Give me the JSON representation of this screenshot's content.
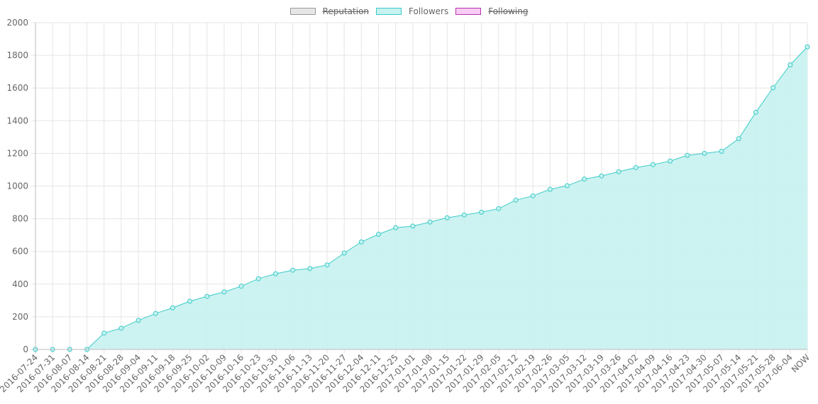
{
  "legend": [
    {
      "label": "Reputation",
      "fill": "#e6e6e6",
      "stroke": "#999999",
      "hidden": true
    },
    {
      "label": "Followers",
      "fill": "#c6f2f0",
      "stroke": "#3dcbc8",
      "hidden": false
    },
    {
      "label": "Following",
      "fill": "#f8ccf4",
      "stroke": "#b833ae",
      "hidden": true
    }
  ],
  "chart_data": {
    "type": "area",
    "title": "",
    "xlabel": "",
    "ylabel": "",
    "ylim": [
      0,
      2000
    ],
    "yticks": [
      "0",
      "200",
      "400",
      "600",
      "800",
      "1000",
      "1200",
      "1400",
      "1600",
      "1800",
      "2000"
    ],
    "grid": true,
    "legend_position": "top-center",
    "categories": [
      "2016-07-24",
      "2016-07-31",
      "2016-08-07",
      "2016-08-14",
      "2016-08-21",
      "2016-08-28",
      "2016-09-04",
      "2016-09-11",
      "2016-09-18",
      "2016-09-25",
      "2016-10-02",
      "2016-10-09",
      "2016-10-16",
      "2016-10-23",
      "2016-10-30",
      "2016-11-06",
      "2016-11-13",
      "2016-11-20",
      "2016-11-27",
      "2016-12-04",
      "2016-12-11",
      "2016-12-25",
      "2017-01-01",
      "2017-01-08",
      "2017-01-15",
      "2017-01-22",
      "2017-01-29",
      "2017-02-05",
      "2017-02-12",
      "2017-02-19",
      "2017-02-26",
      "2017-03-05",
      "2017-03-12",
      "2017-03-19",
      "2017-03-26",
      "2017-04-02",
      "2017-04-09",
      "2017-04-16",
      "2017-04-23",
      "2017-04-30",
      "2017-05-07",
      "2017-05-14",
      "2017-05-21",
      "2017-05-28",
      "2017-06-04",
      "NOW"
    ],
    "series": [
      {
        "name": "Followers",
        "color": "#3dcbc8",
        "fill": "#c6f2f0",
        "values": [
          0,
          0,
          0,
          0,
          100,
          130,
          178,
          220,
          255,
          295,
          325,
          352,
          387,
          433,
          463,
          485,
          495,
          517,
          590,
          658,
          705,
          745,
          755,
          780,
          806,
          823,
          840,
          862,
          914,
          940,
          980,
          1002,
          1043,
          1062,
          1088,
          1113,
          1131,
          1153,
          1188,
          1200,
          1213,
          1290,
          1452,
          1602,
          1742,
          1852
        ]
      }
    ]
  }
}
